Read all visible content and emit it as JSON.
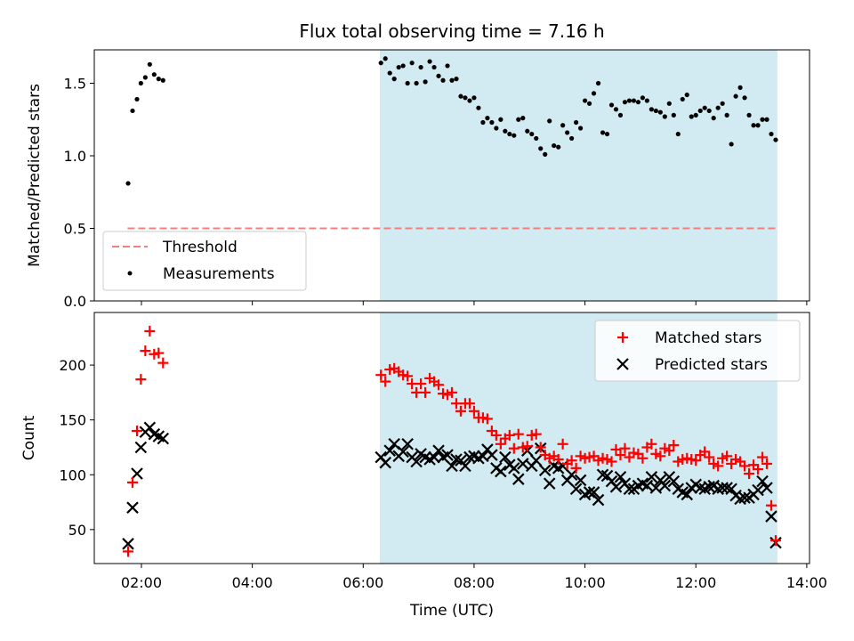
{
  "chart_data": {
    "title": "Flux total observing time = 7.16 h",
    "xlabel": "Time (UTC)",
    "x_ticks": [
      "02:00",
      "04:00",
      "06:00",
      "08:00",
      "10:00",
      "12:00",
      "14:00"
    ],
    "x_tick_hours": [
      2,
      4,
      6,
      8,
      10,
      12,
      14
    ],
    "xlim_hours": [
      1.15,
      14.05
    ],
    "shaded_span_hours": [
      6.3,
      13.47
    ],
    "shade_color": "#add8e6",
    "top": {
      "type": "scatter",
      "ylabel": "Matched/Predicted stars",
      "ylim": [
        0,
        1.73
      ],
      "y_ticks": [
        "0.0",
        "0.5",
        "1.0",
        "1.5"
      ],
      "y_tick_values": [
        0,
        0.5,
        1.0,
        1.5
      ],
      "threshold": {
        "name": "Threshold",
        "value": 0.5,
        "x_range": [
          1.75,
          13.47
        ],
        "color": "#f08080"
      },
      "measurements_name": "Measurements",
      "measurements": [
        [
          1.76,
          0.81
        ],
        [
          1.84,
          1.31
        ],
        [
          1.92,
          1.39
        ],
        [
          1.99,
          1.5
        ],
        [
          2.07,
          1.54
        ],
        [
          2.15,
          1.63
        ],
        [
          2.23,
          1.56
        ],
        [
          2.31,
          1.53
        ],
        [
          2.39,
          1.52
        ],
        [
          6.32,
          1.64
        ],
        [
          6.4,
          1.67
        ],
        [
          6.48,
          1.57
        ],
        [
          6.56,
          1.53
        ],
        [
          6.64,
          1.61
        ],
        [
          6.72,
          1.62
        ],
        [
          6.8,
          1.5
        ],
        [
          6.88,
          1.64
        ],
        [
          6.96,
          1.5
        ],
        [
          7.04,
          1.61
        ],
        [
          7.12,
          1.51
        ],
        [
          7.2,
          1.65
        ],
        [
          7.28,
          1.61
        ],
        [
          7.36,
          1.55
        ],
        [
          7.44,
          1.52
        ],
        [
          7.52,
          1.62
        ],
        [
          7.6,
          1.52
        ],
        [
          7.68,
          1.53
        ],
        [
          7.76,
          1.41
        ],
        [
          7.84,
          1.4
        ],
        [
          7.92,
          1.38
        ],
        [
          8.0,
          1.4
        ],
        [
          8.08,
          1.33
        ],
        [
          8.16,
          1.23
        ],
        [
          8.24,
          1.26
        ],
        [
          8.32,
          1.23
        ],
        [
          8.4,
          1.19
        ],
        [
          8.48,
          1.25
        ],
        [
          8.56,
          1.17
        ],
        [
          8.64,
          1.15
        ],
        [
          8.72,
          1.14
        ],
        [
          8.8,
          1.25
        ],
        [
          8.88,
          1.26
        ],
        [
          8.96,
          1.17
        ],
        [
          9.04,
          1.15
        ],
        [
          9.12,
          1.12
        ],
        [
          9.2,
          1.05
        ],
        [
          9.28,
          1.01
        ],
        [
          9.36,
          1.24
        ],
        [
          9.44,
          1.07
        ],
        [
          9.52,
          1.06
        ],
        [
          9.6,
          1.21
        ],
        [
          9.68,
          1.16
        ],
        [
          9.76,
          1.12
        ],
        [
          9.84,
          1.23
        ],
        [
          9.92,
          1.19
        ],
        [
          10.0,
          1.38
        ],
        [
          10.08,
          1.36
        ],
        [
          10.16,
          1.43
        ],
        [
          10.24,
          1.5
        ],
        [
          10.32,
          1.16
        ],
        [
          10.4,
          1.15
        ],
        [
          10.48,
          1.35
        ],
        [
          10.56,
          1.32
        ],
        [
          10.64,
          1.28
        ],
        [
          10.72,
          1.37
        ],
        [
          10.8,
          1.38
        ],
        [
          10.88,
          1.38
        ],
        [
          10.96,
          1.37
        ],
        [
          11.04,
          1.4
        ],
        [
          11.12,
          1.38
        ],
        [
          11.2,
          1.32
        ],
        [
          11.28,
          1.31
        ],
        [
          11.36,
          1.3
        ],
        [
          11.44,
          1.27
        ],
        [
          11.52,
          1.36
        ],
        [
          11.6,
          1.28
        ],
        [
          11.68,
          1.15
        ],
        [
          11.76,
          1.39
        ],
        [
          11.84,
          1.42
        ],
        [
          11.92,
          1.27
        ],
        [
          12.0,
          1.28
        ],
        [
          12.08,
          1.31
        ],
        [
          12.16,
          1.33
        ],
        [
          12.24,
          1.31
        ],
        [
          12.32,
          1.26
        ],
        [
          12.4,
          1.33
        ],
        [
          12.48,
          1.36
        ],
        [
          12.56,
          1.28
        ],
        [
          12.64,
          1.08
        ],
        [
          12.72,
          1.41
        ],
        [
          12.8,
          1.47
        ],
        [
          12.88,
          1.4
        ],
        [
          12.96,
          1.28
        ],
        [
          13.04,
          1.21
        ],
        [
          13.12,
          1.21
        ],
        [
          13.2,
          1.25
        ],
        [
          13.28,
          1.25
        ],
        [
          13.36,
          1.15
        ],
        [
          13.44,
          1.11
        ]
      ]
    },
    "bottom": {
      "type": "scatter",
      "ylabel": "Count",
      "ylim": [
        19,
        248
      ],
      "y_ticks": [
        "50",
        "100",
        "150",
        "200"
      ],
      "y_tick_values": [
        50,
        100,
        150,
        200
      ],
      "matched_name": "Matched stars",
      "predicted_name": "Predicted stars",
      "matched_color": "#ff0000",
      "predicted_color": "#000000",
      "matched": [
        [
          1.76,
          30
        ],
        [
          1.84,
          93
        ],
        [
          1.92,
          140
        ],
        [
          1.99,
          187
        ],
        [
          2.07,
          213
        ],
        [
          2.15,
          231
        ],
        [
          2.23,
          210
        ],
        [
          2.31,
          211
        ],
        [
          2.39,
          202
        ],
        [
          6.32,
          191
        ],
        [
          6.4,
          185
        ],
        [
          6.48,
          196
        ],
        [
          6.56,
          197
        ],
        [
          6.64,
          194
        ],
        [
          6.72,
          191
        ],
        [
          6.8,
          190
        ],
        [
          6.88,
          183
        ],
        [
          6.96,
          175
        ],
        [
          7.04,
          183
        ],
        [
          7.12,
          175
        ],
        [
          7.2,
          188
        ],
        [
          7.28,
          185
        ],
        [
          7.36,
          182
        ],
        [
          7.44,
          174
        ],
        [
          7.52,
          173
        ],
        [
          7.6,
          175
        ],
        [
          7.68,
          165
        ],
        [
          7.76,
          158
        ],
        [
          7.84,
          165
        ],
        [
          7.92,
          165
        ],
        [
          8.0,
          158
        ],
        [
          8.08,
          152
        ],
        [
          8.16,
          152
        ],
        [
          8.24,
          151
        ],
        [
          8.32,
          140
        ],
        [
          8.4,
          136
        ],
        [
          8.48,
          128
        ],
        [
          8.56,
          133
        ],
        [
          8.64,
          136
        ],
        [
          8.72,
          124
        ],
        [
          8.8,
          137
        ],
        [
          8.88,
          125
        ],
        [
          8.96,
          126
        ],
        [
          9.04,
          136
        ],
        [
          9.12,
          137
        ],
        [
          9.2,
          125
        ],
        [
          9.28,
          118
        ],
        [
          9.36,
          115
        ],
        [
          9.44,
          117
        ],
        [
          9.52,
          114
        ],
        [
          9.6,
          128
        ],
        [
          9.68,
          110
        ],
        [
          9.76,
          113
        ],
        [
          9.84,
          106
        ],
        [
          9.92,
          117
        ],
        [
          10.0,
          115
        ],
        [
          10.08,
          116
        ],
        [
          10.16,
          117
        ],
        [
          10.24,
          113
        ],
        [
          10.32,
          115
        ],
        [
          10.4,
          114
        ],
        [
          10.48,
          112
        ],
        [
          10.56,
          123
        ],
        [
          10.64,
          118
        ],
        [
          10.72,
          124
        ],
        [
          10.8,
          116
        ],
        [
          10.88,
          120
        ],
        [
          10.96,
          119
        ],
        [
          11.04,
          115
        ],
        [
          11.12,
          125
        ],
        [
          11.2,
          128
        ],
        [
          11.28,
          119
        ],
        [
          11.36,
          117
        ],
        [
          11.44,
          124
        ],
        [
          11.52,
          122
        ],
        [
          11.6,
          127
        ],
        [
          11.68,
          112
        ],
        [
          11.76,
          114
        ],
        [
          11.84,
          115
        ],
        [
          11.92,
          114
        ],
        [
          12.0,
          113
        ],
        [
          12.08,
          118
        ],
        [
          12.16,
          121
        ],
        [
          12.24,
          116
        ],
        [
          12.32,
          110
        ],
        [
          12.4,
          108
        ],
        [
          12.48,
          115
        ],
        [
          12.56,
          117
        ],
        [
          12.64,
          110
        ],
        [
          12.72,
          114
        ],
        [
          12.8,
          112
        ],
        [
          12.88,
          108
        ],
        [
          12.96,
          101
        ],
        [
          13.04,
          109
        ],
        [
          13.12,
          105
        ],
        [
          13.2,
          116
        ],
        [
          13.28,
          110
        ],
        [
          13.36,
          72
        ],
        [
          13.44,
          40
        ]
      ],
      "predicted": [
        [
          1.76,
          37
        ],
        [
          1.84,
          70
        ],
        [
          1.92,
          101
        ],
        [
          1.99,
          125
        ],
        [
          2.07,
          139
        ],
        [
          2.15,
          143
        ],
        [
          2.23,
          137
        ],
        [
          2.31,
          135
        ],
        [
          2.39,
          133
        ],
        [
          6.32,
          116
        ],
        [
          6.4,
          111
        ],
        [
          6.48,
          122
        ],
        [
          6.56,
          128
        ],
        [
          6.64,
          117
        ],
        [
          6.72,
          121
        ],
        [
          6.8,
          128
        ],
        [
          6.88,
          116
        ],
        [
          6.96,
          112
        ],
        [
          7.04,
          119
        ],
        [
          7.12,
          116
        ],
        [
          7.2,
          114
        ],
        [
          7.28,
          116
        ],
        [
          7.36,
          122
        ],
        [
          7.44,
          116
        ],
        [
          7.52,
          118
        ],
        [
          7.6,
          108
        ],
        [
          7.68,
          114
        ],
        [
          7.76,
          113
        ],
        [
          7.84,
          108
        ],
        [
          7.92,
          116
        ],
        [
          8.0,
          117
        ],
        [
          8.08,
          115
        ],
        [
          8.16,
          117
        ],
        [
          8.24,
          123
        ],
        [
          8.32,
          118
        ],
        [
          8.4,
          106
        ],
        [
          8.48,
          103
        ],
        [
          8.56,
          116
        ],
        [
          8.64,
          109
        ],
        [
          8.72,
          106
        ],
        [
          8.8,
          96
        ],
        [
          8.88,
          110
        ],
        [
          8.96,
          122
        ],
        [
          9.04,
          108
        ],
        [
          9.12,
          113
        ],
        [
          9.2,
          124
        ],
        [
          9.28,
          104
        ],
        [
          9.36,
          92
        ],
        [
          9.44,
          108
        ],
        [
          9.52,
          106
        ],
        [
          9.6,
          108
        ],
        [
          9.68,
          95
        ],
        [
          9.76,
          100
        ],
        [
          9.84,
          87
        ],
        [
          9.92,
          95
        ],
        [
          10.0,
          82
        ],
        [
          10.08,
          84
        ],
        [
          10.16,
          84
        ],
        [
          10.24,
          77
        ],
        [
          10.32,
          100
        ],
        [
          10.4,
          99
        ],
        [
          10.48,
          94
        ],
        [
          10.56,
          89
        ],
        [
          10.64,
          98
        ],
        [
          10.72,
          92
        ],
        [
          10.8,
          87
        ],
        [
          10.88,
          87
        ],
        [
          10.96,
          90
        ],
        [
          11.04,
          92
        ],
        [
          11.12,
          90
        ],
        [
          11.2,
          98
        ],
        [
          11.28,
          88
        ],
        [
          11.36,
          95
        ],
        [
          11.44,
          90
        ],
        [
          11.52,
          98
        ],
        [
          11.6,
          94
        ],
        [
          11.68,
          87
        ],
        [
          11.76,
          84
        ],
        [
          11.84,
          82
        ],
        [
          11.92,
          88
        ],
        [
          12.0,
          91
        ],
        [
          12.08,
          88
        ],
        [
          12.16,
          87
        ],
        [
          12.24,
          89
        ],
        [
          12.32,
          90
        ],
        [
          12.4,
          87
        ],
        [
          12.48,
          88
        ],
        [
          12.56,
          88
        ],
        [
          12.64,
          87
        ],
        [
          12.72,
          81
        ],
        [
          12.8,
          78
        ],
        [
          12.88,
          79
        ],
        [
          12.96,
          79
        ],
        [
          13.04,
          82
        ],
        [
          13.12,
          86
        ],
        [
          13.2,
          94
        ],
        [
          13.28,
          88
        ],
        [
          13.36,
          62
        ],
        [
          13.44,
          38
        ]
      ]
    }
  }
}
